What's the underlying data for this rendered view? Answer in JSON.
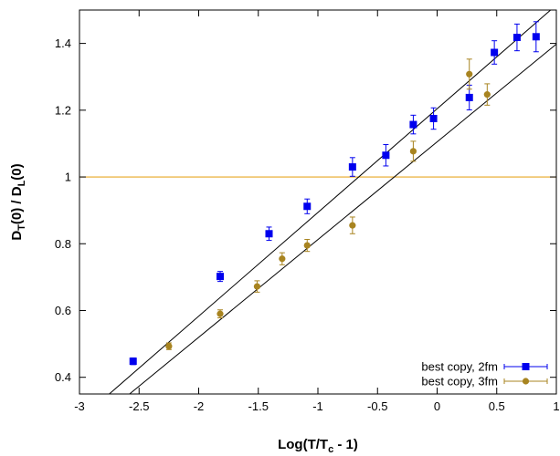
{
  "chart_data": {
    "type": "scatter",
    "xlabel": "Log(T/T_c - 1)",
    "xlabel_main": "Log(T/T",
    "xlabel_sub": "c",
    "xlabel_tail": " - 1)",
    "ylabel_parts": [
      "D",
      "T",
      "(0) / D",
      "L",
      "(0)"
    ],
    "xlim": [
      -3,
      1
    ],
    "ylim": [
      0.35,
      1.5
    ],
    "x_ticks": [
      -3,
      -2.5,
      -2,
      -1.5,
      -1,
      -0.5,
      0,
      0.5,
      1
    ],
    "x_tick_labels": [
      "-3",
      "-2.5",
      "-2",
      "-1.5",
      "-1",
      "-0.5",
      "0",
      "0.5",
      "1"
    ],
    "y_ticks": [
      0.4,
      0.6,
      0.8,
      1.0,
      1.2,
      1.4
    ],
    "y_tick_labels": [
      "0.4",
      "0.6",
      "0.8",
      "1",
      "1.2",
      "1.4"
    ],
    "grid": false,
    "legend_position": "bottom-right",
    "reference_line": {
      "y": 1.0,
      "color": "#e8a825"
    },
    "series": [
      {
        "name": "best copy, 2fm",
        "marker": "square",
        "color": "#0000ee",
        "points": [
          {
            "x": -2.55,
            "y": 0.448,
            "err": 0.01
          },
          {
            "x": -1.82,
            "y": 0.702,
            "err": 0.015
          },
          {
            "x": -1.41,
            "y": 0.83,
            "err": 0.02
          },
          {
            "x": -1.09,
            "y": 0.912,
            "err": 0.022
          },
          {
            "x": -0.71,
            "y": 1.03,
            "err": 0.028
          },
          {
            "x": -0.43,
            "y": 1.065,
            "err": 0.032
          },
          {
            "x": -0.2,
            "y": 1.157,
            "err": 0.028
          },
          {
            "x": -0.03,
            "y": 1.175,
            "err": 0.032
          },
          {
            "x": 0.27,
            "y": 1.238,
            "err": 0.037
          },
          {
            "x": 0.48,
            "y": 1.373,
            "err": 0.035
          },
          {
            "x": 0.67,
            "y": 1.418,
            "err": 0.04
          },
          {
            "x": 0.83,
            "y": 1.42,
            "err": 0.045
          }
        ]
      },
      {
        "name": "best copy, 3fm",
        "marker": "circle",
        "color": "#a88420",
        "points": [
          {
            "x": -2.25,
            "y": 0.493,
            "err": 0.01
          },
          {
            "x": -1.82,
            "y": 0.59,
            "err": 0.012
          },
          {
            "x": -1.51,
            "y": 0.672,
            "err": 0.017
          },
          {
            "x": -1.3,
            "y": 0.755,
            "err": 0.018
          },
          {
            "x": -1.09,
            "y": 0.795,
            "err": 0.018
          },
          {
            "x": -0.71,
            "y": 0.855,
            "err": 0.025
          },
          {
            "x": -0.2,
            "y": 1.077,
            "err": 0.03
          },
          {
            "x": 0.27,
            "y": 1.308,
            "err": 0.045
          },
          {
            "x": 0.42,
            "y": 1.247,
            "err": 0.032
          }
        ]
      }
    ],
    "fit_lines": [
      {
        "color": "#000000",
        "x1": -2.75,
        "y1": 0.35,
        "x2": 1.0,
        "y2": 1.515
      },
      {
        "color": "#000000",
        "x1": -2.58,
        "y1": 0.35,
        "x2": 1.0,
        "y2": 1.398
      }
    ]
  }
}
